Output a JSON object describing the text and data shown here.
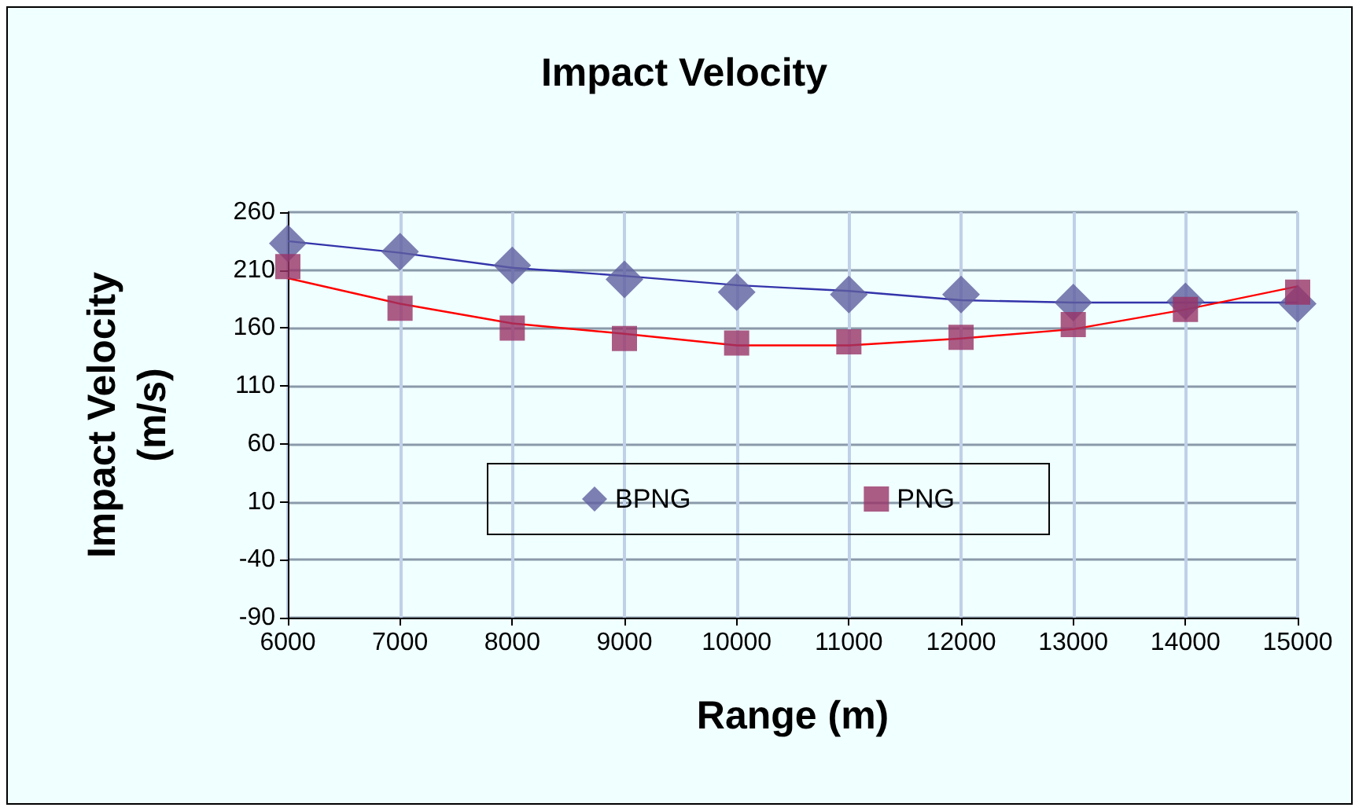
{
  "chart_data": {
    "type": "scatter",
    "title": "Impact Velocity",
    "xlabel": "Range (m)",
    "ylabel": "Impact Velocity\n(m/s)",
    "x": [
      6000,
      7000,
      8000,
      9000,
      10000,
      11000,
      12000,
      13000,
      14000,
      15000
    ],
    "series": [
      {
        "name": "BPNG",
        "color": "#5f5f9f",
        "marker": "diamond",
        "values": [
          233,
          226,
          214,
          202,
          191,
          189,
          189,
          182,
          183,
          181
        ]
      },
      {
        "name": "PNG",
        "color": "#993366",
        "marker": "square",
        "values": [
          213,
          177,
          160,
          151,
          147,
          148,
          152,
          163,
          176,
          191
        ]
      },
      {
        "type": "line",
        "color": "#3333aa",
        "marker": "none",
        "values": [
          235,
          225,
          212,
          205,
          197,
          192,
          184,
          182,
          182,
          182
        ]
      },
      {
        "type": "line",
        "color": "#ff0000",
        "marker": "none",
        "values": [
          203,
          181,
          164,
          155,
          145,
          145,
          151,
          159,
          176,
          196
        ]
      }
    ],
    "xlim": [
      6000,
      15000
    ],
    "xticks": [
      6000,
      7000,
      8000,
      9000,
      10000,
      11000,
      12000,
      13000,
      14000,
      15000
    ],
    "ylim": [
      -90,
      260
    ],
    "yticks": [
      -90,
      -40,
      10,
      60,
      110,
      160,
      210,
      260
    ],
    "grid": true,
    "legend": "bottom"
  }
}
